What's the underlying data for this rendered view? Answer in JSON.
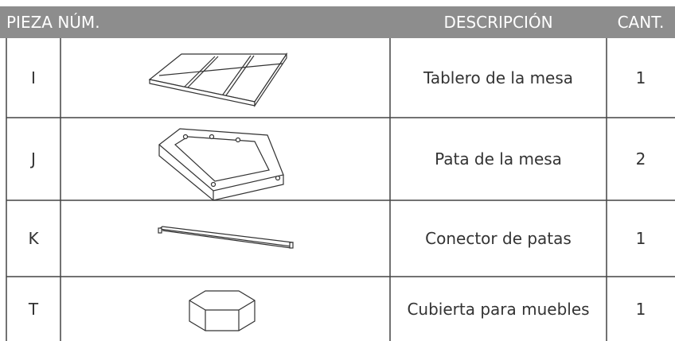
{
  "header": [
    "PIEZA NÚM.",
    "DESCRIPCIÓN",
    "CANT."
  ],
  "rows": [
    [
      "I",
      "Tablero de la mesa",
      "1"
    ],
    [
      "J",
      "Pata de la mesa",
      "2"
    ],
    [
      "K",
      "Conector de patas",
      "1"
    ],
    [
      "T",
      "Cubierta para muebles",
      "1"
    ]
  ]
}
